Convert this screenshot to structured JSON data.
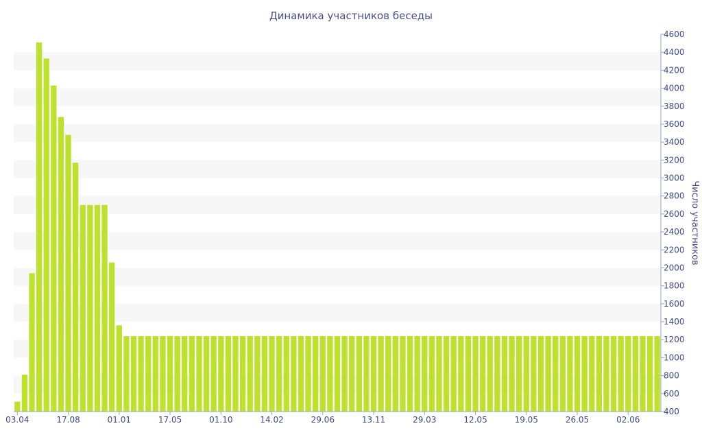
{
  "chart_data": {
    "type": "bar",
    "title": "Динамика участников беседы",
    "ylabel": "Число участников",
    "xlabel": "",
    "ylim": [
      400,
      4600
    ],
    "y_ticks": [
      400,
      600,
      800,
      1000,
      1200,
      1400,
      1600,
      1800,
      2000,
      2200,
      2400,
      2600,
      2800,
      3000,
      3200,
      3400,
      3600,
      3800,
      4000,
      4200,
      4400,
      4600
    ],
    "y_axis_side": "right",
    "grid": "alternating horizontal bands",
    "legend": "none",
    "bar_color": "#bde12d",
    "x_tick_labels": [
      {
        "index": 0,
        "label": "03.04"
      },
      {
        "index": 7,
        "label": "17.08"
      },
      {
        "index": 14,
        "label": "01.01"
      },
      {
        "index": 21,
        "label": "17.05"
      },
      {
        "index": 28,
        "label": "01.10"
      },
      {
        "index": 35,
        "label": "14.02"
      },
      {
        "index": 42,
        "label": "29.06"
      },
      {
        "index": 49,
        "label": "13.11"
      },
      {
        "index": 56,
        "label": "29.03"
      },
      {
        "index": 63,
        "label": "12.05"
      },
      {
        "index": 70,
        "label": "19.05"
      },
      {
        "index": 77,
        "label": "26.05"
      },
      {
        "index": 84,
        "label": "02.06"
      }
    ],
    "values": [
      510,
      810,
      1940,
      4510,
      4330,
      4030,
      3680,
      3480,
      3170,
      2700,
      2700,
      2700,
      2700,
      2060,
      1360,
      1240,
      1240,
      1240,
      1240,
      1240,
      1240,
      1240,
      1240,
      1240,
      1240,
      1240,
      1240,
      1240,
      1240,
      1240,
      1240,
      1240,
      1240,
      1240,
      1240,
      1240,
      1240,
      1240,
      1240,
      1240,
      1240,
      1240,
      1240,
      1240,
      1240,
      1240,
      1240,
      1240,
      1240,
      1240,
      1240,
      1240,
      1240,
      1240,
      1240,
      1240,
      1240,
      1240,
      1240,
      1240,
      1240,
      1240,
      1240,
      1240,
      1240,
      1240,
      1240,
      1240,
      1240,
      1240,
      1240,
      1240,
      1240,
      1240,
      1240,
      1240,
      1240,
      1240,
      1240,
      1240,
      1240,
      1240,
      1240,
      1240,
      1240,
      1240,
      1240,
      1240,
      1240
    ]
  }
}
